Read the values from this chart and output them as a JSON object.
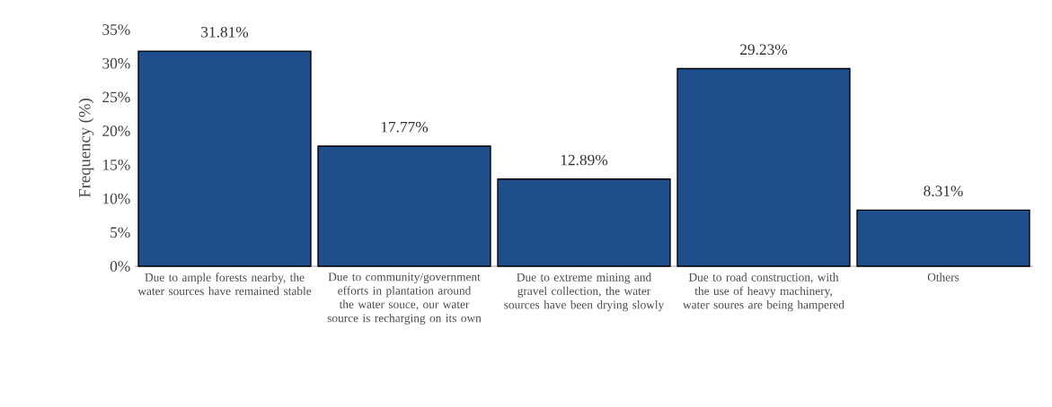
{
  "chart_data": {
    "type": "bar",
    "ylabel": "Frequency (%)",
    "categories": [
      "Due to ample forests nearby, the water sources have remained stable",
      "Due to community/government efforts in plantation around the water souce, our water source is recharging on its own",
      "Due to extreme mining and gravel collection, the water sources have been drying slowly",
      "Due to road construction, with the use of heavy machinery, water soures are being hampered",
      "Others"
    ],
    "values": [
      31.81,
      17.77,
      12.89,
      29.23,
      8.31
    ],
    "value_labels": [
      "31.81%",
      "17.77%",
      "12.89%",
      "29.23%",
      "8.31%"
    ],
    "color": "#1f4e8c",
    "ylim": [
      0,
      35
    ],
    "yticks": [
      {
        "value": 0,
        "label": "0%"
      },
      {
        "value": 5,
        "label": "5%"
      },
      {
        "value": 10,
        "label": "10%"
      },
      {
        "value": 15,
        "label": "15%"
      },
      {
        "value": 20,
        "label": "20%"
      },
      {
        "value": 25,
        "label": "25%"
      },
      {
        "value": 30,
        "label": "30%"
      },
      {
        "value": 35,
        "label": "35%"
      }
    ]
  }
}
